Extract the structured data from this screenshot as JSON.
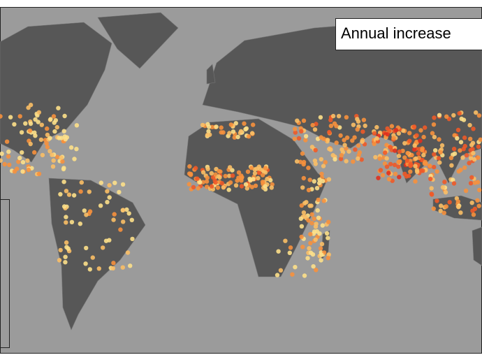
{
  "legend": {
    "title": "Annual increase"
  }
}
